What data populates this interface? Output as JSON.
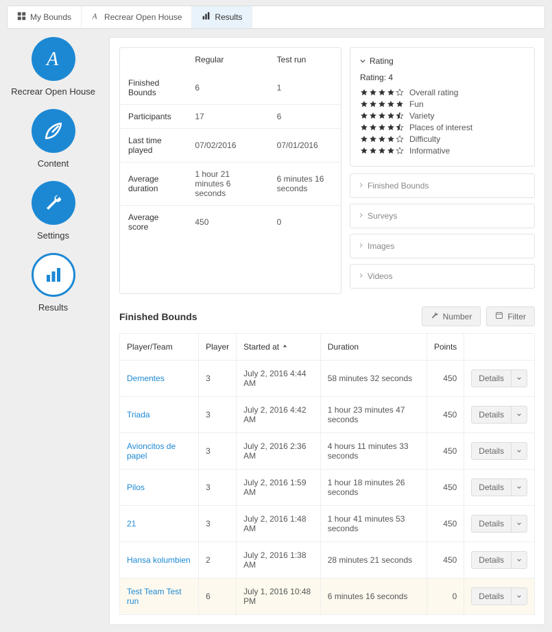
{
  "breadcrumb": {
    "my_bounds": "My Bounds",
    "project": "Recrear Open House",
    "results": "Results"
  },
  "sidebar": {
    "title": "Recrear Open House",
    "content": "Content",
    "settings": "Settings",
    "results": "Results"
  },
  "stats": {
    "headers": {
      "regular": "Regular",
      "testrun": "Test run"
    },
    "rows": [
      {
        "label": "Finished Bounds",
        "regular": "6",
        "testrun": "1"
      },
      {
        "label": "Participants",
        "regular": "17",
        "testrun": "6"
      },
      {
        "label": "Last time played",
        "regular": "07/02/2016",
        "testrun": "07/01/2016"
      },
      {
        "label": "Average duration",
        "regular": "1 hour 21 minutes 6 seconds",
        "testrun": "6 minutes 16 seconds"
      },
      {
        "label": "Average score",
        "regular": "450",
        "testrun": "0"
      }
    ]
  },
  "rating": {
    "title": "Rating",
    "value_label": "Rating: 4",
    "items": [
      {
        "label": "Overall rating",
        "stars": 4
      },
      {
        "label": "Fun",
        "stars": 5
      },
      {
        "label": "Variety",
        "stars": 4.5
      },
      {
        "label": "Places of interest",
        "stars": 4.5
      },
      {
        "label": "Difficulty",
        "stars": 4
      },
      {
        "label": "Informative",
        "stars": 4
      }
    ]
  },
  "accordions": {
    "finished_bounds": "Finished Bounds",
    "surveys": "Surveys",
    "images": "Images",
    "videos": "Videos"
  },
  "finished": {
    "title": "Finished Bounds",
    "number_btn": "Number",
    "filter_btn": "Filter",
    "columns": {
      "team": "Player/Team",
      "player": "Player",
      "started": "Started at",
      "duration": "Duration",
      "points": "Points"
    },
    "details_label": "Details",
    "rows": [
      {
        "team": "Dementes",
        "player": "3",
        "started": "July 2, 2016 4:44 AM",
        "duration": "58 minutes 32 seconds",
        "points": "450",
        "hl": false
      },
      {
        "team": "Triada",
        "player": "3",
        "started": "July 2, 2016 4:42 AM",
        "duration": "1 hour 23 minutes 47 seconds",
        "points": "450",
        "hl": false
      },
      {
        "team": "Avioncitos de papel",
        "player": "3",
        "started": "July 2, 2016 2:36 AM",
        "duration": "4 hours 11 minutes 33 seconds",
        "points": "450",
        "hl": false
      },
      {
        "team": "Pilos",
        "player": "3",
        "started": "July 2, 2016 1:59 AM",
        "duration": "1 hour 18 minutes 26 seconds",
        "points": "450",
        "hl": false
      },
      {
        "team": "21",
        "player": "3",
        "started": "July 2, 2016 1:48 AM",
        "duration": "1 hour 41 minutes 53 seconds",
        "points": "450",
        "hl": false
      },
      {
        "team": "Hansa kolumbien",
        "player": "2",
        "started": "July 2, 2016 1:38 AM",
        "duration": "28 minutes 21 seconds",
        "points": "450",
        "hl": false
      },
      {
        "team": "Test Team Test run",
        "player": "6",
        "started": "July 1, 2016 10:48 PM",
        "duration": "6 minutes 16 seconds",
        "points": "0",
        "hl": true
      }
    ]
  },
  "colors": {
    "accent": "#1c88d4",
    "bg": "#eeeeee",
    "border": "#e3e3e3",
    "highlight_row": "#fdf9ee",
    "text": "#333333",
    "muted": "#888888"
  }
}
